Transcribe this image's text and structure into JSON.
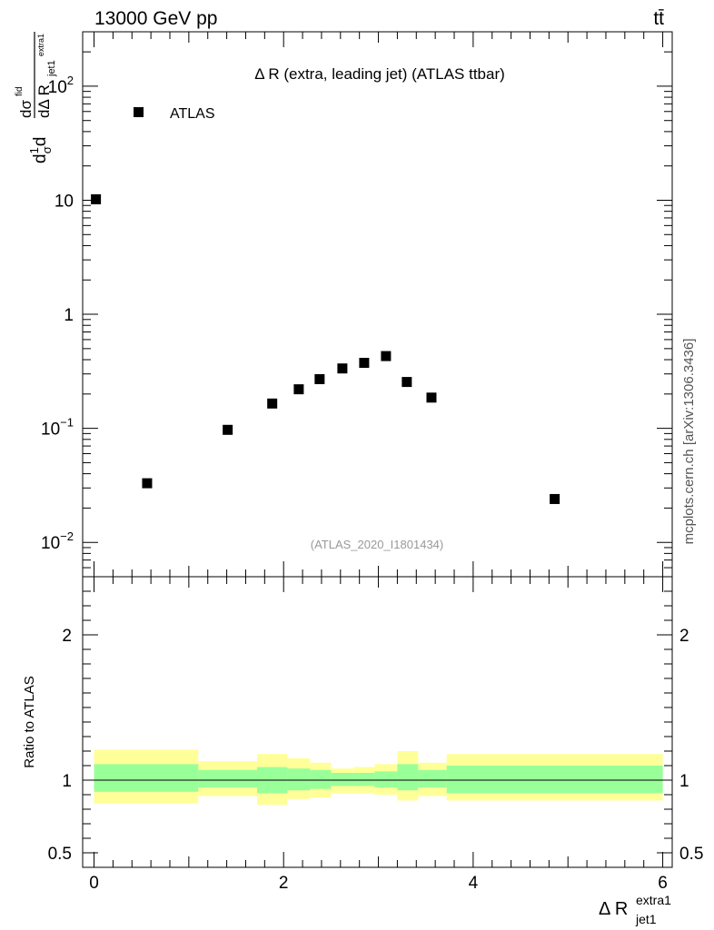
{
  "header": {
    "energy_label": "13000 GeV pp",
    "process_label": "tt̄"
  },
  "side_text": "mcplots.cern.ch [arXiv:1306.3436]",
  "chart_data": [
    {
      "type": "scatter",
      "title": "Δ R (extra, leading jet) (ATLAS ttbar)",
      "reference": "(ATLAS_2020_I1801434)",
      "ylabel_parts": {
        "d": "d",
        "one": "1",
        "sigma": "σ",
        "dsigma": "dσ",
        "fid": "fid",
        "dDeltaR": "dΔ R",
        "sub": "jet1",
        "sup": "extra1"
      },
      "y_scale": "log",
      "ylim": [
        0.005,
        300
      ],
      "xlim": [
        -0.12,
        6.1
      ],
      "y_tick_labels": [
        {
          "value": 0.01,
          "base": "10",
          "exp": "−2"
        },
        {
          "value": 0.1,
          "base": "10",
          "exp": "−1"
        },
        {
          "value": 1,
          "base": "1",
          "exp": ""
        },
        {
          "value": 10,
          "base": "10",
          "exp": ""
        },
        {
          "value": 100,
          "base": "10",
          "exp": "2"
        }
      ],
      "legend": {
        "position": "top-left",
        "entries": [
          {
            "name": "ATLAS",
            "marker": "square",
            "color": "#000000"
          }
        ]
      },
      "series": [
        {
          "name": "ATLAS",
          "points": [
            {
              "x": 0.02,
              "y": 10.2
            },
            {
              "x": 0.56,
              "y": 0.033
            },
            {
              "x": 1.41,
              "y": 0.097
            },
            {
              "x": 1.88,
              "y": 0.165
            },
            {
              "x": 2.16,
              "y": 0.22
            },
            {
              "x": 2.38,
              "y": 0.27
            },
            {
              "x": 2.62,
              "y": 0.335
            },
            {
              "x": 2.85,
              "y": 0.375
            },
            {
              "x": 3.08,
              "y": 0.43
            },
            {
              "x": 3.3,
              "y": 0.255
            },
            {
              "x": 3.56,
              "y": 0.186
            },
            {
              "x": 4.86,
              "y": 0.024
            }
          ]
        }
      ]
    },
    {
      "type": "area",
      "ylabel": "Ratio to ATLAS",
      "xlabel": "Δ R",
      "xlabel_sub": "jet1",
      "xlabel_sup": "extra1",
      "xlim": [
        -0.12,
        6.1
      ],
      "ylim": [
        0.4,
        2.4
      ],
      "x_tick_labels": [
        {
          "value": 0,
          "label": "0"
        },
        {
          "value": 2,
          "label": "2"
        },
        {
          "value": 4,
          "label": "4"
        },
        {
          "value": 6,
          "label": "6"
        }
      ],
      "y_tick_labels": [
        {
          "value": 0.5,
          "label": "0.5"
        },
        {
          "value": 1,
          "label": "1"
        },
        {
          "value": 2,
          "label": "2"
        }
      ],
      "reference_line": 1,
      "bands": [
        {
          "name": "total uncertainty",
          "color": "#ffff99",
          "bins": [
            {
              "x0": 0.0,
              "x1": 1.1,
              "lo": 0.84,
              "hi": 1.21
            },
            {
              "x0": 1.1,
              "x1": 1.72,
              "lo": 0.89,
              "hi": 1.13
            },
            {
              "x0": 1.72,
              "x1": 2.04,
              "lo": 0.83,
              "hi": 1.18
            },
            {
              "x0": 2.04,
              "x1": 2.28,
              "lo": 0.87,
              "hi": 1.15
            },
            {
              "x0": 2.28,
              "x1": 2.5,
              "lo": 0.88,
              "hi": 1.12
            },
            {
              "x0": 2.5,
              "x1": 2.74,
              "lo": 0.91,
              "hi": 1.08
            },
            {
              "x0": 2.74,
              "x1": 2.96,
              "lo": 0.91,
              "hi": 1.09
            },
            {
              "x0": 2.96,
              "x1": 3.2,
              "lo": 0.9,
              "hi": 1.11
            },
            {
              "x0": 3.2,
              "x1": 3.42,
              "lo": 0.86,
              "hi": 1.2
            },
            {
              "x0": 3.42,
              "x1": 3.72,
              "lo": 0.89,
              "hi": 1.12
            },
            {
              "x0": 3.72,
              "x1": 6.0,
              "lo": 0.86,
              "hi": 1.18
            }
          ]
        },
        {
          "name": "stat uncertainty",
          "color": "#99ff99",
          "bins": [
            {
              "x0": 0.0,
              "x1": 1.1,
              "lo": 0.92,
              "hi": 1.11
            },
            {
              "x0": 1.1,
              "x1": 1.72,
              "lo": 0.95,
              "hi": 1.07
            },
            {
              "x0": 1.72,
              "x1": 2.04,
              "lo": 0.91,
              "hi": 1.09
            },
            {
              "x0": 2.04,
              "x1": 2.28,
              "lo": 0.93,
              "hi": 1.08
            },
            {
              "x0": 2.28,
              "x1": 2.5,
              "lo": 0.94,
              "hi": 1.07
            },
            {
              "x0": 2.5,
              "x1": 2.74,
              "lo": 0.96,
              "hi": 1.05
            },
            {
              "x0": 2.74,
              "x1": 2.96,
              "lo": 0.96,
              "hi": 1.05
            },
            {
              "x0": 2.96,
              "x1": 3.2,
              "lo": 0.95,
              "hi": 1.06
            },
            {
              "x0": 3.2,
              "x1": 3.42,
              "lo": 0.93,
              "hi": 1.11
            },
            {
              "x0": 3.42,
              "x1": 3.72,
              "lo": 0.95,
              "hi": 1.07
            },
            {
              "x0": 3.72,
              "x1": 6.0,
              "lo": 0.91,
              "hi": 1.1
            }
          ]
        }
      ]
    }
  ]
}
